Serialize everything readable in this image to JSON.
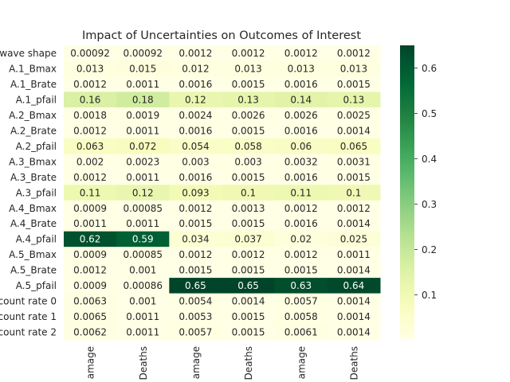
{
  "chart_data": {
    "type": "heatmap",
    "title": "Impact of Uncertainties on Outcomes of Interest",
    "rows": [
      "wave shape",
      "A.1_Bmax",
      "A.1_Brate",
      "A.1_pfail",
      "A.2_Bmax",
      "A.2_Brate",
      "A.2_pfail",
      "A.3_Bmax",
      "A.3_Brate",
      "A.3_pfail",
      "A.4_Bmax",
      "A.4_Brate",
      "A.4_pfail",
      "A.5_Bmax",
      "A.5_Brate",
      "A.5_pfail",
      "count rate 0",
      "count rate 1",
      "count rate 2"
    ],
    "columns": [
      "amage",
      "Deaths",
      "amage",
      "Deaths",
      "amage",
      "Deaths"
    ],
    "values": [
      [
        0.00092,
        0.00092,
        0.0012,
        0.0012,
        0.0012,
        0.0012
      ],
      [
        0.013,
        0.015,
        0.012,
        0.013,
        0.013,
        0.013
      ],
      [
        0.0012,
        0.0011,
        0.0016,
        0.0015,
        0.0016,
        0.0015
      ],
      [
        0.16,
        0.18,
        0.12,
        0.13,
        0.14,
        0.13
      ],
      [
        0.0018,
        0.0019,
        0.0024,
        0.0026,
        0.0026,
        0.0025
      ],
      [
        0.0012,
        0.0011,
        0.0016,
        0.0015,
        0.0016,
        0.0014
      ],
      [
        0.063,
        0.072,
        0.054,
        0.058,
        0.06,
        0.065
      ],
      [
        0.002,
        0.0023,
        0.003,
        0.003,
        0.0032,
        0.0031
      ],
      [
        0.0012,
        0.0011,
        0.0016,
        0.0015,
        0.0016,
        0.0015
      ],
      [
        0.11,
        0.12,
        0.093,
        0.1,
        0.11,
        0.1
      ],
      [
        0.0009,
        0.00085,
        0.0012,
        0.0013,
        0.0012,
        0.0012
      ],
      [
        0.0011,
        0.0011,
        0.0015,
        0.0015,
        0.0016,
        0.0014
      ],
      [
        0.62,
        0.59,
        0.034,
        0.037,
        0.02,
        0.025
      ],
      [
        0.0009,
        0.00085,
        0.0012,
        0.0012,
        0.0012,
        0.0011
      ],
      [
        0.0012,
        0.001,
        0.0015,
        0.0015,
        0.0015,
        0.0014
      ],
      [
        0.0009,
        0.00086,
        0.65,
        0.65,
        0.63,
        0.64
      ],
      [
        0.0063,
        0.001,
        0.0054,
        0.0014,
        0.0057,
        0.0014
      ],
      [
        0.0065,
        0.0011,
        0.0053,
        0.0015,
        0.0058,
        0.0014
      ],
      [
        0.0062,
        0.0011,
        0.0057,
        0.0015,
        0.0061,
        0.0014
      ]
    ],
    "colormap": "YlGn",
    "vmin": 0.00085,
    "vmax": 0.65,
    "colorbar_ticks": [
      0.1,
      0.2,
      0.3,
      0.4,
      0.5,
      0.6
    ],
    "colorbar_tick_labels": [
      "0.1",
      "0.2",
      "0.3",
      "0.4",
      "0.5",
      "0.6"
    ],
    "annotated": true,
    "grid": false
  }
}
